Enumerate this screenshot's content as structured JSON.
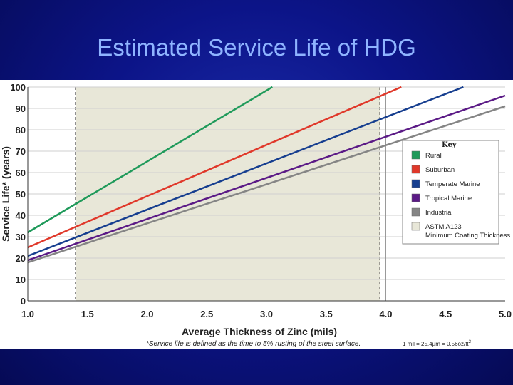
{
  "slide": {
    "title": "Estimated Service Life of HDG"
  },
  "chart_data": {
    "type": "line",
    "title": "Estimated Service Life of HDG",
    "xlabel": "Average Thickness of Zinc (mils)",
    "ylabel": "Service Life* (years)",
    "xlim": [
      1.0,
      5.0
    ],
    "ylim": [
      0,
      100
    ],
    "x_ticks": [
      "1.0",
      "1.5",
      "2.0",
      "2.5",
      "3.0",
      "3.5",
      "4.0",
      "4.5",
      "5.0"
    ],
    "y_ticks": [
      "0",
      "10",
      "20",
      "30",
      "40",
      "50",
      "60",
      "70",
      "80",
      "90",
      "100"
    ],
    "grid": "horizontal",
    "shaded_band": {
      "label": "ASTM A123 Minimum Coating Thickness",
      "x_start": 1.4,
      "x_end": 3.95,
      "color": "#e8e7d8"
    },
    "vertical_reference_line": {
      "x": 4.0
    },
    "series": [
      {
        "name": "Rural",
        "color": "#1f9a5a",
        "x": [
          1.0,
          3.05
        ],
        "y": [
          32,
          100
        ]
      },
      {
        "name": "Suburban",
        "color": "#e0382a",
        "x": [
          1.0,
          4.13
        ],
        "y": [
          25,
          100
        ]
      },
      {
        "name": "Temperate Marine",
        "color": "#163e8f",
        "x": [
          1.0,
          4.65
        ],
        "y": [
          21,
          100
        ]
      },
      {
        "name": "Tropical Marine",
        "color": "#5b1a86",
        "x": [
          1.0,
          5.0
        ],
        "y": [
          19,
          96
        ]
      },
      {
        "name": "Industrial",
        "color": "#858585",
        "x": [
          1.0,
          5.0
        ],
        "y": [
          18,
          91
        ]
      }
    ],
    "legend": {
      "title": "Key",
      "placement": "right"
    },
    "footnote": "*Service life is defined as the time to 5% rusting of the steel surface.",
    "unit_note": "1 mil = 25.4µm = 0.56oz/ft",
    "unit_note_sup": "2"
  }
}
